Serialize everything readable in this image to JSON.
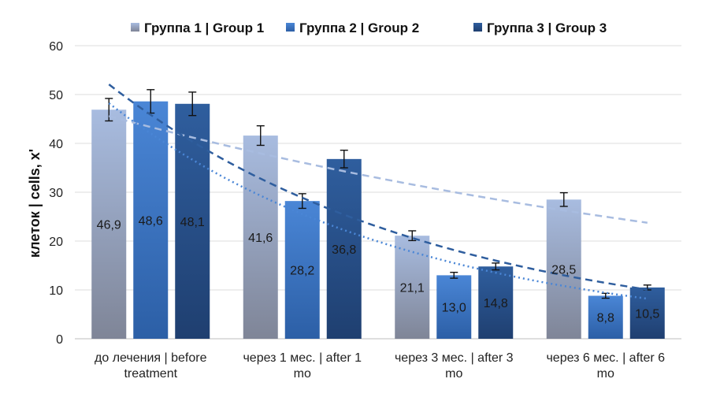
{
  "chart_data": {
    "type": "bar",
    "ylabel": "клеток | cells, x'",
    "ylim": [
      0,
      60
    ],
    "yticks": [
      0,
      10,
      20,
      30,
      40,
      50,
      60
    ],
    "grid": true,
    "legend_position": "top",
    "categories": [
      [
        "до лечения | before",
        "treatment"
      ],
      [
        "через 1 мес. | after 1",
        "mo"
      ],
      [
        "через 3 мес. | after 3",
        "mo"
      ],
      [
        "через 6 мес. | after 6",
        "mo"
      ]
    ],
    "series": [
      {
        "name": "Группа 1 | Group 1",
        "values": [
          46.9,
          41.6,
          21.1,
          28.5
        ],
        "labels": [
          "46,9",
          "41,6",
          "21,1",
          "28,5"
        ],
        "errors": [
          2.3,
          2.0,
          1.0,
          1.4
        ],
        "color_top": "#a8bce0",
        "color_bottom": "#7f8597",
        "trendline": "dashed"
      },
      {
        "name": "Группа 2 | Group 2",
        "values": [
          48.6,
          28.2,
          13.0,
          8.8
        ],
        "labels": [
          "48,6",
          "28,2",
          "13,0",
          "8,8"
        ],
        "errors": [
          2.4,
          1.5,
          0.6,
          0.5
        ],
        "color_top": "#4a86d6",
        "color_bottom": "#2c5fa6",
        "trendline": "dotted"
      },
      {
        "name": "Группа 3 | Group 3",
        "values": [
          48.1,
          36.8,
          14.8,
          10.5
        ],
        "labels": [
          "48,1",
          "36,8",
          "14,8",
          "10,5"
        ],
        "errors": [
          2.4,
          1.8,
          0.7,
          0.5
        ],
        "color_top": "#2f5e9e",
        "color_bottom": "#1f3f70",
        "trendline": "dashed"
      }
    ]
  }
}
